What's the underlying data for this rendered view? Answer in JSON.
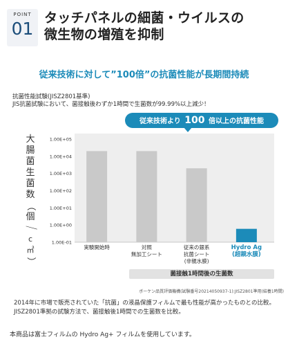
{
  "point": {
    "label": "POINT",
    "number": "01"
  },
  "headline": {
    "line1": "タッチパネルの細菌・ウイルスの",
    "line2": "微生物の増殖を抑制"
  },
  "subheadline": "従来技術に対して”100倍”の抗菌性能が長期間持続",
  "test": {
    "name": "抗菌性能試験(JISZ2801基準)",
    "description": "JIS抗菌試験において、菌接触後わずか1時間で生菌数が99.99%以上減少！"
  },
  "bubble": {
    "prefix": "従来技術より",
    "number": "100",
    "suffix": "倍以上の抗菌性能"
  },
  "colors": {
    "accent": "#1c8bb9",
    "bar_gray": "#c9c9c9",
    "bar_highlight": "#1c8bb9",
    "plot_bg": "#eeeeee"
  },
  "chart_data": {
    "type": "bar",
    "ylabel_chars": [
      "大",
      "腸",
      "菌",
      "生",
      "菌",
      "数",
      "（",
      "個",
      "／",
      "c",
      "㎡",
      "）"
    ],
    "yscale": "log",
    "ylim": [
      0.1,
      100000
    ],
    "yticks": [
      "1.00E-01",
      "1.00E+00",
      "1.00E+01",
      "1.00E+02",
      "1.00E+03",
      "1.00E+04",
      "1.00E+05"
    ],
    "xlabel": "菌接触1時間後の生菌数",
    "grid": false,
    "categories": [
      {
        "lines": [
          "実験開始時"
        ]
      },
      {
        "lines": [
          "対照",
          "無加工シート"
        ]
      },
      {
        "lines": [
          "従来の銀系",
          "抗菌シート",
          "(非親水膜)"
        ]
      },
      {
        "lines": [
          "Hydro Ag",
          "(超親水膜)"
        ],
        "highlight": true
      }
    ],
    "values": [
      20000,
      20000,
      2000,
      0.6
    ]
  },
  "source": "ボーケン品質評価機構(試験番号20214050937-1):JISZ2801準用(結養1時間)",
  "footer": {
    "paragraph": "2014年に市場で販売されていた「抗菌」の液晶保護フィルムで最も性能が高かったものとの比較。JISZ2801準拠の試験方法で、菌接触後1時間での生菌数を比較。",
    "note": "本商品は富士フィルムの Hydro Ag+ フィルムを使用しています。"
  }
}
